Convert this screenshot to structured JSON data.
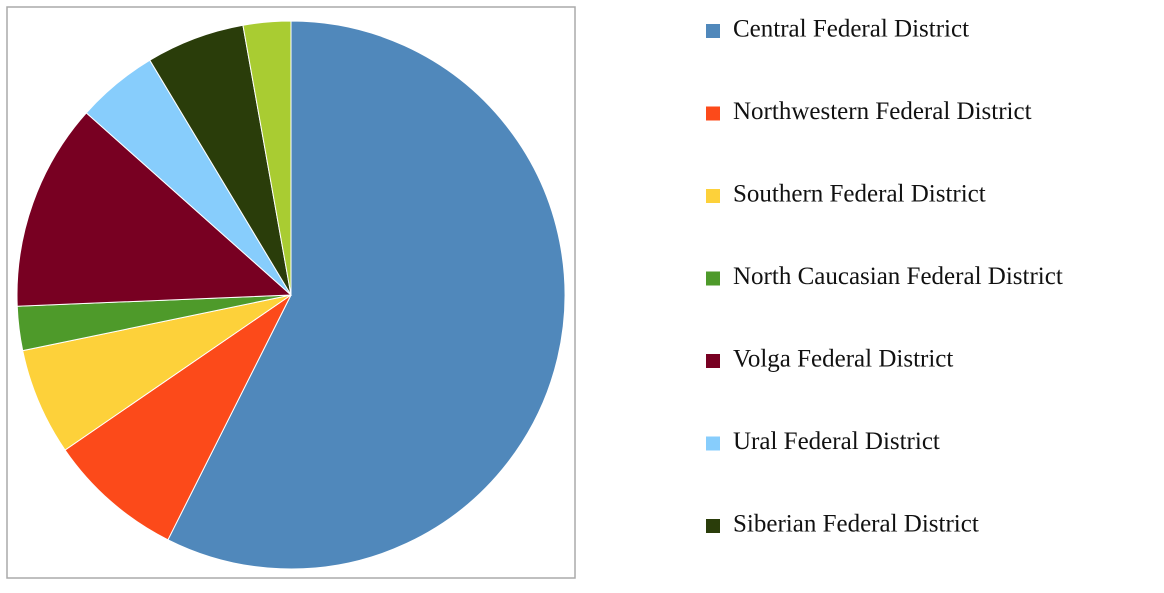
{
  "chart_data": {
    "type": "pie",
    "categories": [
      "Central Federal District",
      "Northwestern Federal District",
      "Southern Federal District",
      "North Caucasian Federal District",
      "Volga Federal District",
      "Ural Federal District",
      "Siberian Federal District",
      null
    ],
    "values": [
      57.3,
      8.0,
      6.3,
      2.6,
      12.2,
      4.8,
      5.8,
      2.8
    ],
    "colors": [
      "#5088bb",
      "#fc4a1a",
      "#fdd13a",
      "#4e9a2a",
      "#780022",
      "#87cdfc",
      "#2a3d0a",
      "#a9cc32"
    ],
    "legend": "right"
  }
}
